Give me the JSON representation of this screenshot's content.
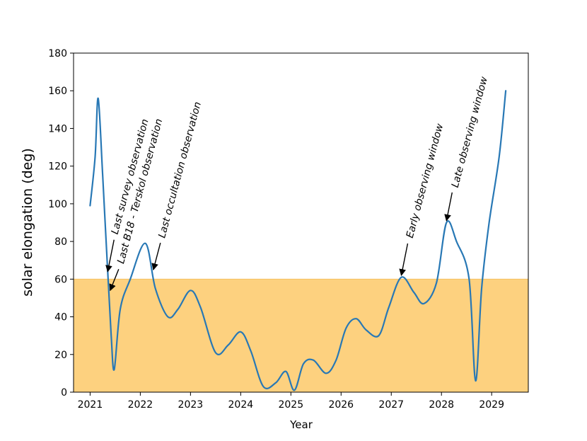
{
  "chart_data": {
    "type": "line",
    "xlabel": "Year",
    "ylabel": "solar elongation (deg)",
    "xlim": [
      2020.67,
      2029.73
    ],
    "ylim": [
      0,
      180
    ],
    "x_ticks": [
      "2021",
      "2022",
      "2023",
      "2024",
      "2025",
      "2026",
      "2027",
      "2028",
      "2029"
    ],
    "y_ticks": [
      "0",
      "20",
      "40",
      "60",
      "80",
      "100",
      "120",
      "140",
      "160",
      "180"
    ],
    "grid": false,
    "threshold_band": {
      "from": 0,
      "to": 60,
      "color": "#fdd17f"
    },
    "series": [
      {
        "color": "#2878b5",
        "x": [
          2021.0,
          2021.1,
          2021.16,
          2021.25,
          2021.35,
          2021.42,
          2021.48,
          2021.6,
          2021.8,
          2022.1,
          2022.3,
          2022.55,
          2022.75,
          2023.0,
          2023.2,
          2023.5,
          2023.75,
          2024.0,
          2024.2,
          2024.45,
          2024.7,
          2024.9,
          2025.07,
          2025.25,
          2025.45,
          2025.7,
          2025.9,
          2026.1,
          2026.3,
          2026.5,
          2026.75,
          2026.95,
          2027.2,
          2027.45,
          2027.65,
          2027.9,
          2028.1,
          2028.3,
          2028.55,
          2028.68,
          2028.8,
          2028.95,
          2029.15,
          2029.28
        ],
        "y": [
          99,
          125,
          156,
          115,
          64,
          30,
          12,
          44,
          60,
          79,
          55,
          40,
          44,
          54,
          45,
          21,
          25,
          32,
          22,
          3,
          5,
          11,
          1,
          15,
          17,
          10,
          17,
          34,
          39,
          33,
          30,
          45,
          61,
          53,
          47,
          58,
          90,
          80,
          60,
          6,
          55,
          90,
          125,
          160
        ]
      }
    ],
    "annotations": [
      {
        "text": "Last survey observation",
        "x": 2021.35,
        "y": 64
      },
      {
        "text": "Last B18 - Terskol observation",
        "x": 2021.4,
        "y": 54
      },
      {
        "text": "Last occultation observation",
        "x": 2022.26,
        "y": 65
      },
      {
        "text": "Early observing window",
        "x": 2027.2,
        "y": 62
      },
      {
        "text": "Late observing window",
        "x": 2028.1,
        "y": 91
      }
    ]
  }
}
